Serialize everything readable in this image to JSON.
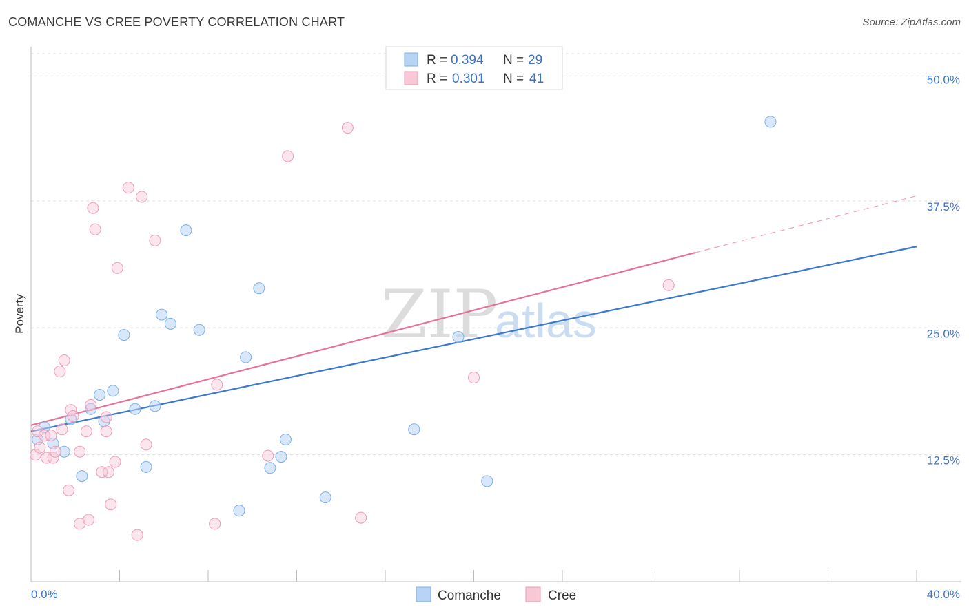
{
  "header": {
    "title": "COMANCHE VS CREE POVERTY CORRELATION CHART",
    "source": "Source: ZipAtlas.com"
  },
  "watermark": {
    "part1": "ZIP",
    "part2": "atlas"
  },
  "legend": {
    "rows": [
      {
        "r_label": "R =",
        "r_value": "0.394",
        "n_label": "N =",
        "n_value": "29",
        "color": "#7aaee8",
        "fill": "#b8d4f4"
      },
      {
        "r_label": "R =",
        "r_value": "0.301",
        "n_label": "N =",
        "n_value": "41",
        "color": "#ee9ab4",
        "fill": "#f8c8d6"
      }
    ]
  },
  "bottom_legend": {
    "items": [
      "Comanche",
      "Cree"
    ]
  },
  "chart_data": {
    "type": "scatter",
    "title": "COMANCHE VS CREE POVERTY CORRELATION CHART",
    "xlabel": "",
    "ylabel": "Poverty",
    "xlim": [
      0,
      40
    ],
    "ylim": [
      0,
      52
    ],
    "x_tick_labels": [
      "0.0%",
      "40.0%"
    ],
    "y_ticks": [
      12.5,
      25.0,
      37.5,
      50.0
    ],
    "y_tick_labels": [
      "12.5%",
      "25.0%",
      "37.5%",
      "50.0%"
    ],
    "grid": true,
    "series": [
      {
        "name": "Comanche",
        "color": "#3a78d0",
        "points": [
          [
            0.3,
            14.0
          ],
          [
            0.6,
            15.2
          ],
          [
            1.0,
            13.6
          ],
          [
            1.5,
            12.8
          ],
          [
            1.8,
            16.0
          ],
          [
            2.3,
            10.4
          ],
          [
            2.7,
            17.0
          ],
          [
            3.1,
            18.4
          ],
          [
            3.3,
            15.8
          ],
          [
            3.7,
            18.8
          ],
          [
            4.2,
            24.3
          ],
          [
            4.7,
            17.0
          ],
          [
            5.2,
            11.3
          ],
          [
            5.6,
            17.3
          ],
          [
            5.9,
            26.3
          ],
          [
            6.3,
            25.4
          ],
          [
            7.0,
            34.6
          ],
          [
            7.6,
            24.8
          ],
          [
            9.4,
            7.0
          ],
          [
            9.7,
            22.1
          ],
          [
            10.3,
            28.9
          ],
          [
            10.8,
            11.2
          ],
          [
            11.3,
            12.3
          ],
          [
            11.5,
            14.0
          ],
          [
            13.3,
            8.3
          ],
          [
            17.3,
            15.0
          ],
          [
            19.3,
            24.1
          ],
          [
            20.6,
            9.9
          ],
          [
            33.4,
            45.3
          ]
        ],
        "trend": {
          "x": [
            0,
            40
          ],
          "y": [
            14.8,
            33.0
          ]
        }
      },
      {
        "name": "Cree",
        "color": "#e87098",
        "points": [
          [
            0.2,
            12.5
          ],
          [
            0.3,
            14.8
          ],
          [
            0.4,
            13.2
          ],
          [
            0.6,
            14.4
          ],
          [
            0.7,
            12.2
          ],
          [
            0.9,
            14.4
          ],
          [
            1.0,
            12.2
          ],
          [
            1.1,
            12.8
          ],
          [
            1.3,
            20.7
          ],
          [
            1.4,
            15.0
          ],
          [
            1.5,
            21.8
          ],
          [
            1.7,
            9.0
          ],
          [
            1.8,
            16.9
          ],
          [
            1.9,
            16.3
          ],
          [
            2.2,
            12.8
          ],
          [
            2.2,
            5.7
          ],
          [
            2.5,
            14.8
          ],
          [
            2.6,
            6.1
          ],
          [
            2.7,
            17.4
          ],
          [
            2.8,
            36.8
          ],
          [
            2.9,
            34.7
          ],
          [
            3.2,
            10.8
          ],
          [
            3.4,
            16.2
          ],
          [
            3.4,
            14.8
          ],
          [
            3.5,
            10.8
          ],
          [
            3.6,
            7.6
          ],
          [
            3.8,
            11.8
          ],
          [
            3.9,
            30.9
          ],
          [
            4.4,
            38.8
          ],
          [
            4.8,
            4.6
          ],
          [
            5.0,
            37.9
          ],
          [
            5.2,
            13.5
          ],
          [
            5.6,
            33.6
          ],
          [
            8.3,
            5.7
          ],
          [
            8.4,
            19.4
          ],
          [
            10.7,
            12.4
          ],
          [
            11.6,
            41.9
          ],
          [
            14.3,
            44.7
          ],
          [
            14.9,
            6.3
          ],
          [
            20.0,
            20.1
          ],
          [
            28.8,
            29.2
          ]
        ],
        "trend": {
          "x": [
            0,
            30
          ],
          "y": [
            15.4,
            32.4
          ]
        },
        "trend_dashed": {
          "x": [
            30,
            40
          ],
          "y": [
            32.4,
            38.0
          ]
        }
      }
    ]
  }
}
